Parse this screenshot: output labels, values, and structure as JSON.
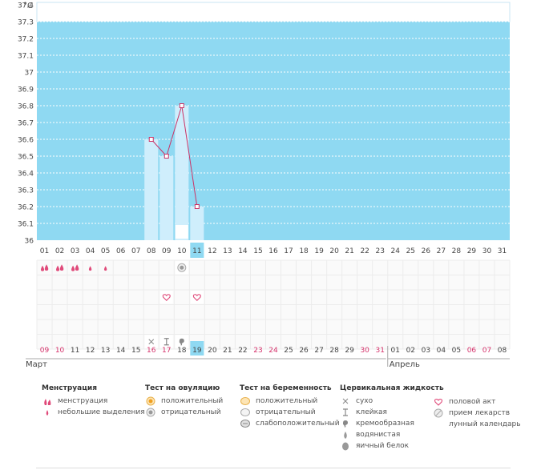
{
  "chart_data": {
    "type": "line",
    "yunit": "°C",
    "yticks": [
      "37.4",
      "37.3",
      "37.2",
      "37.1",
      "37",
      "36.9",
      "36.8",
      "36.7",
      "36.6",
      "36.5",
      "36.4",
      "36.3",
      "36.2",
      "36.1",
      "36"
    ],
    "ylim": [
      36.0,
      37.4
    ],
    "cycle_days": [
      "01",
      "02",
      "03",
      "04",
      "05",
      "06",
      "07",
      "08",
      "09",
      "10",
      "11",
      "12",
      "13",
      "14",
      "15",
      "16",
      "17",
      "18",
      "19",
      "20",
      "21",
      "22",
      "23",
      "24",
      "25",
      "26",
      "27",
      "28",
      "29",
      "30",
      "31"
    ],
    "dates": [
      "09",
      "10",
      "11",
      "12",
      "13",
      "14",
      "15",
      "16",
      "17",
      "18",
      "19",
      "20",
      "21",
      "22",
      "23",
      "24",
      "25",
      "26",
      "27",
      "28",
      "29",
      "30",
      "31",
      "01",
      "02",
      "03",
      "04",
      "05",
      "06",
      "07",
      "08"
    ],
    "red_dates": [
      0,
      1,
      7,
      8,
      14,
      15,
      21,
      22,
      28,
      29
    ],
    "today_index": 10,
    "month_labels": [
      "Март",
      "Апрель"
    ],
    "month_start_index": 23,
    "temperature": {
      "x": [
        "08",
        "09",
        "10",
        "11"
      ],
      "y": [
        36.6,
        36.5,
        36.8,
        36.2
      ]
    },
    "menstruation_heavy": [
      "01",
      "02",
      "03"
    ],
    "menstruation_light": [
      "04",
      "05"
    ],
    "ovulation_test_negative": [
      "10"
    ],
    "intercourse": [
      "09",
      "11"
    ],
    "lunar_calendar": [
      "10"
    ],
    "cervical_fluid": [
      {
        "day": "08",
        "type": "сухо"
      },
      {
        "day": "09",
        "type": "клейкая"
      },
      {
        "day": "10",
        "type": "кремообразная"
      }
    ],
    "colors": {
      "plot_bg": "#8fd9f2",
      "bar": "#cfeefc",
      "line": "#cc3366",
      "today": "#8fd9f2",
      "red_date": "#d6336c",
      "pink": "#e04a7a"
    }
  },
  "legend": {
    "menstruation": {
      "title": "Менструация",
      "items": [
        "менструация",
        "небольшие выделения"
      ]
    },
    "ovulation": {
      "title": "Тест на овуляцию",
      "items": [
        "положительный",
        "отрицательный"
      ]
    },
    "pregnancy": {
      "title": "Тест на беременность",
      "items": [
        "положительный",
        "отрицательный",
        "слабоположительный"
      ]
    },
    "cervical": {
      "title": "Цервикальная жидкость",
      "items": [
        "сухо",
        "клейкая",
        "кремообразная",
        "водянистая",
        "яичный белок"
      ]
    },
    "other": {
      "items": [
        "половой акт",
        "прием лекарств",
        "лунный календарь"
      ]
    }
  }
}
